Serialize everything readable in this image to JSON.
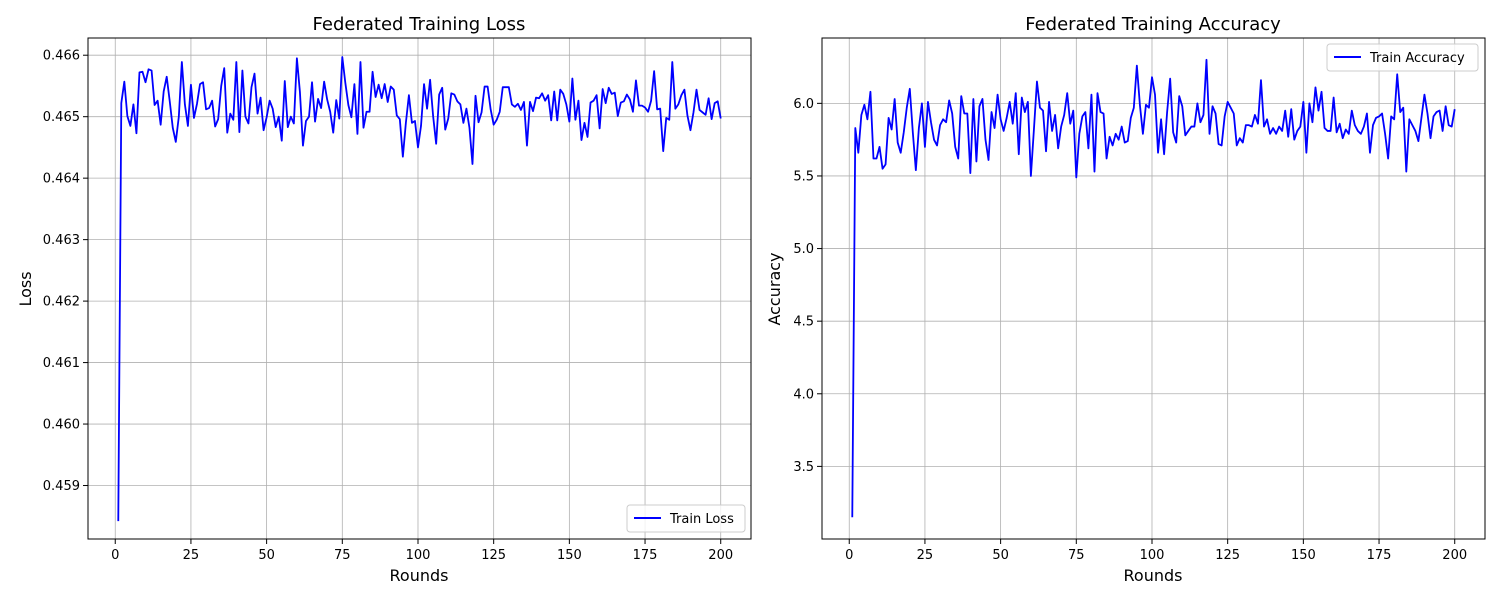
{
  "chart_data": [
    {
      "type": "line",
      "title": "Federated Training Loss",
      "xlabel": "Rounds",
      "ylabel": "Loss",
      "xlim": [
        -9,
        210
      ],
      "ylim": [
        0.45813,
        0.46628
      ],
      "xticks": [
        0,
        25,
        50,
        75,
        100,
        125,
        150,
        175,
        200
      ],
      "yticks": [
        0.459,
        0.46,
        0.461,
        0.462,
        0.463,
        0.464,
        0.465,
        0.466
      ],
      "ytick_labels": [
        "0.459",
        "0.460",
        "0.461",
        "0.462",
        "0.463",
        "0.464",
        "0.465",
        "0.466"
      ],
      "grid": true,
      "legend_position": "lower-right",
      "series": [
        {
          "name": "Train Loss",
          "color": "#0000ff",
          "x_start": 1,
          "x_step": 1,
          "values": [
            0.45842,
            0.46522,
            0.46557,
            0.46501,
            0.46485,
            0.4652,
            0.46473,
            0.46572,
            0.46573,
            0.46556,
            0.46577,
            0.46575,
            0.46519,
            0.46526,
            0.46487,
            0.46541,
            0.46565,
            0.46525,
            0.46482,
            0.46459,
            0.465,
            0.46589,
            0.4652,
            0.46485,
            0.46552,
            0.46498,
            0.46521,
            0.46553,
            0.46556,
            0.46512,
            0.46514,
            0.46526,
            0.46484,
            0.46496,
            0.4655,
            0.46579,
            0.46474,
            0.46505,
            0.46495,
            0.46589,
            0.46475,
            0.46575,
            0.465,
            0.46489,
            0.46548,
            0.4657,
            0.46505,
            0.46531,
            0.46478,
            0.46499,
            0.46526,
            0.46513,
            0.46483,
            0.465,
            0.46461,
            0.46558,
            0.46483,
            0.465,
            0.46489,
            0.46595,
            0.4654,
            0.46453,
            0.46493,
            0.465,
            0.46556,
            0.46492,
            0.46529,
            0.46514,
            0.46557,
            0.46528,
            0.46508,
            0.46474,
            0.46527,
            0.46497,
            0.46597,
            0.46555,
            0.46519,
            0.46499,
            0.46553,
            0.46472,
            0.46589,
            0.46482,
            0.46508,
            0.46508,
            0.46573,
            0.46532,
            0.46552,
            0.4653,
            0.46553,
            0.46524,
            0.46549,
            0.46544,
            0.46502,
            0.46496,
            0.46435,
            0.4649,
            0.46535,
            0.4649,
            0.46493,
            0.4645,
            0.46485,
            0.46553,
            0.46513,
            0.4656,
            0.46501,
            0.46456,
            0.46536,
            0.46547,
            0.46479,
            0.46497,
            0.46538,
            0.46536,
            0.46525,
            0.4652,
            0.4649,
            0.46513,
            0.46482,
            0.46423,
            0.46534,
            0.46491,
            0.46507,
            0.46549,
            0.46549,
            0.46512,
            0.46487,
            0.46495,
            0.46508,
            0.46548,
            0.46548,
            0.46548,
            0.4652,
            0.46516,
            0.46521,
            0.46511,
            0.46524,
            0.46453,
            0.46524,
            0.46509,
            0.46531,
            0.4653,
            0.46538,
            0.46526,
            0.46535,
            0.46494,
            0.46541,
            0.46494,
            0.46544,
            0.46537,
            0.4652,
            0.46492,
            0.46562,
            0.46495,
            0.46526,
            0.46462,
            0.4649,
            0.46467,
            0.46523,
            0.46526,
            0.46535,
            0.46481,
            0.46545,
            0.46522,
            0.46547,
            0.46537,
            0.46539,
            0.46501,
            0.46523,
            0.46525,
            0.46536,
            0.46528,
            0.46508,
            0.46559,
            0.46518,
            0.46518,
            0.46515,
            0.46508,
            0.46526,
            0.46574,
            0.46512,
            0.46513,
            0.46444,
            0.46498,
            0.46495,
            0.46589,
            0.46513,
            0.4652,
            0.46535,
            0.46544,
            0.46502,
            0.46478,
            0.46507,
            0.46544,
            0.46511,
            0.46507,
            0.46503,
            0.4653,
            0.46496,
            0.46522,
            0.46525,
            0.46497
          ]
        }
      ]
    },
    {
      "type": "line",
      "title": "Federated Training Accuracy",
      "xlabel": "Rounds",
      "ylabel": "Accuracy",
      "xlim": [
        -9,
        210
      ],
      "ylim": [
        3.0,
        6.45
      ],
      "xticks": [
        0,
        25,
        50,
        75,
        100,
        125,
        150,
        175,
        200
      ],
      "yticks": [
        3.5,
        4.0,
        4.5,
        5.0,
        5.5,
        6.0
      ],
      "ytick_labels": [
        "3.5",
        "4.0",
        "4.5",
        "5.0",
        "5.5",
        "6.0"
      ],
      "grid": true,
      "legend_position": "upper-right",
      "series": [
        {
          "name": "Train Accuracy",
          "color": "#0000ff",
          "x_start": 1,
          "x_step": 1,
          "values": [
            3.15,
            5.83,
            5.66,
            5.92,
            5.99,
            5.89,
            6.08,
            5.62,
            5.62,
            5.7,
            5.55,
            5.58,
            5.9,
            5.82,
            6.03,
            5.73,
            5.66,
            5.8,
            5.97,
            6.1,
            5.8,
            5.54,
            5.83,
            6.0,
            5.7,
            6.01,
            5.87,
            5.75,
            5.71,
            5.85,
            5.89,
            5.87,
            6.02,
            5.93,
            5.7,
            5.62,
            6.05,
            5.93,
            5.93,
            5.52,
            6.03,
            5.6,
            5.98,
            6.03,
            5.75,
            5.61,
            5.94,
            5.83,
            6.06,
            5.89,
            5.81,
            5.9,
            6.01,
            5.86,
            6.07,
            5.65,
            6.04,
            5.94,
            6.01,
            5.5,
            5.82,
            6.15,
            5.97,
            5.95,
            5.67,
            6.01,
            5.81,
            5.92,
            5.69,
            5.84,
            5.92,
            6.07,
            5.86,
            5.95,
            5.49,
            5.79,
            5.91,
            5.94,
            5.69,
            6.06,
            5.53,
            6.07,
            5.94,
            5.93,
            5.62,
            5.77,
            5.71,
            5.79,
            5.75,
            5.84,
            5.73,
            5.74,
            5.9,
            5.97,
            6.26,
            5.99,
            5.79,
            5.99,
            5.97,
            6.18,
            6.06,
            5.66,
            5.89,
            5.65,
            5.94,
            6.17,
            5.8,
            5.73,
            6.05,
            5.98,
            5.78,
            5.81,
            5.84,
            5.84,
            6.0,
            5.87,
            5.92,
            6.3,
            5.79,
            5.98,
            5.93,
            5.72,
            5.71,
            5.91,
            6.01,
            5.97,
            5.93,
            5.71,
            5.76,
            5.73,
            5.85,
            5.85,
            5.84,
            5.92,
            5.86,
            6.16,
            5.84,
            5.89,
            5.79,
            5.83,
            5.79,
            5.84,
            5.81,
            5.95,
            5.77,
            5.96,
            5.75,
            5.81,
            5.84,
            6.01,
            5.66,
            6.0,
            5.87,
            6.11,
            5.95,
            6.08,
            5.83,
            5.81,
            5.81,
            6.04,
            5.8,
            5.86,
            5.76,
            5.82,
            5.79,
            5.95,
            5.85,
            5.81,
            5.79,
            5.84,
            5.93,
            5.66,
            5.85,
            5.9,
            5.91,
            5.93,
            5.79,
            5.62,
            5.91,
            5.89,
            6.2,
            5.94,
            5.97,
            5.53,
            5.89,
            5.85,
            5.81,
            5.74,
            5.9,
            6.06,
            5.93,
            5.76,
            5.91,
            5.94,
            5.95,
            5.81,
            5.98,
            5.85,
            5.84,
            5.96
          ]
        }
      ]
    }
  ]
}
